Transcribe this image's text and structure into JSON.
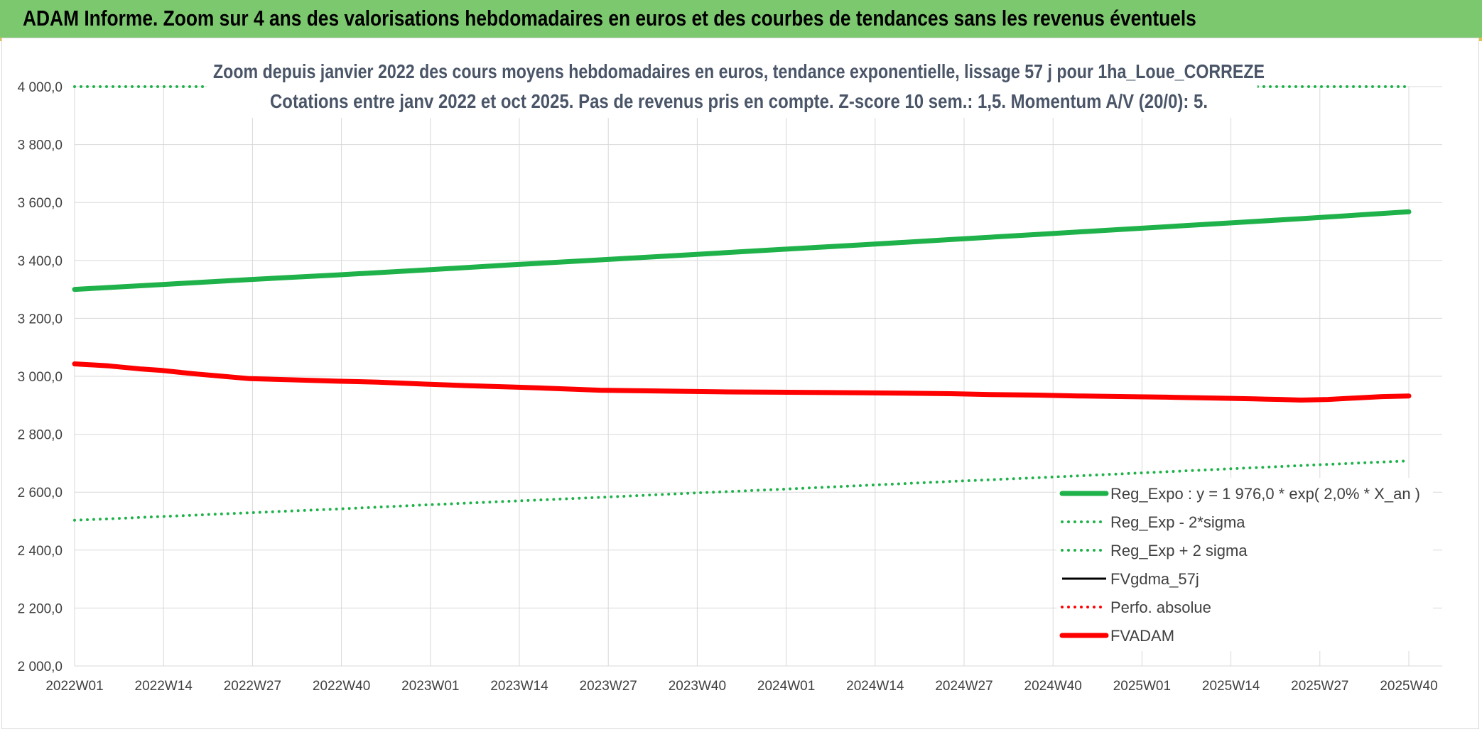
{
  "header": {
    "title": "ADAM Informe. Zoom sur 4 ans des valorisations hebdomadaires en euros et des courbes de tendances sans les revenus éventuels"
  },
  "chart_data": {
    "type": "line",
    "title": "Zoom depuis janvier 2022 des cours moyens hebdomadaires en euros, tendance exponentielle, lissage 57 j pour 1ha_Loue_CORREZE",
    "subtitle": "Cotations entre janv 2022 et oct 2025. Pas de revenus pris en compte. Z-score 10 sem.: 1,5. Momentum A/V (20/0): 5.",
    "xlabel": "",
    "ylabel": "",
    "x_ticks": [
      "2022W01",
      "2022W14",
      "2022W27",
      "2022W40",
      "2023W01",
      "2023W14",
      "2023W27",
      "2023W40",
      "2024W01",
      "2024W14",
      "2024W27",
      "2024W40",
      "2025W01",
      "2025W14",
      "2025W27",
      "2025W40"
    ],
    "y_ticks": [
      "2 000,0",
      "2 200,0",
      "2 400,0",
      "2 600,0",
      "2 800,0",
      "3 000,0",
      "3 200,0",
      "3 400,0",
      "3 600,0",
      "3 800,0",
      "4 000,0"
    ],
    "ylim": [
      2000,
      4000
    ],
    "x_range_weeks": [
      0,
      198
    ],
    "grid": true,
    "legend_position": "bottom-right",
    "series": [
      {
        "name": "Reg_Expo : y = 1 976,0 * exp( 2,0% *  X_an )",
        "style": "solid-thick",
        "color": "#1fb24a",
        "points": [
          [
            0,
            3300
          ],
          [
            13,
            3317
          ],
          [
            26,
            3334
          ],
          [
            39,
            3350
          ],
          [
            52,
            3367
          ],
          [
            65,
            3385
          ],
          [
            78,
            3402
          ],
          [
            91,
            3419
          ],
          [
            104,
            3437
          ],
          [
            117,
            3454
          ],
          [
            130,
            3472
          ],
          [
            143,
            3490
          ],
          [
            156,
            3508
          ],
          [
            169,
            3526
          ],
          [
            182,
            3544
          ],
          [
            198,
            3568
          ]
        ]
      },
      {
        "name": "Reg_Exp - 2*sigma",
        "style": "dotted",
        "color": "#1fb24a",
        "points": [
          [
            0,
            2503
          ],
          [
            13,
            2516
          ],
          [
            26,
            2529
          ],
          [
            39,
            2542
          ],
          [
            52,
            2556
          ],
          [
            65,
            2569
          ],
          [
            78,
            2582
          ],
          [
            91,
            2596
          ],
          [
            104,
            2609
          ],
          [
            117,
            2623
          ],
          [
            130,
            2637
          ],
          [
            143,
            2650
          ],
          [
            156,
            2664
          ],
          [
            169,
            2678
          ],
          [
            182,
            2692
          ],
          [
            198,
            2708
          ]
        ]
      },
      {
        "name": "Reg_Exp + 2 sigma",
        "style": "dotted",
        "color": "#1fb24a",
        "points": [
          [
            0,
            4000
          ],
          [
            198,
            4000
          ]
        ]
      },
      {
        "name": "FVgdma_57j",
        "style": "solid",
        "color": "#000000",
        "points": []
      },
      {
        "name": "Perfo. absolue",
        "style": "dotted",
        "color": "#ff0000",
        "points": []
      },
      {
        "name": "FVADAM",
        "style": "solid-thick",
        "color": "#ff0000",
        "points": [
          [
            0,
            3043
          ],
          [
            5,
            3036
          ],
          [
            10,
            3025
          ],
          [
            13,
            3020
          ],
          [
            18,
            3008
          ],
          [
            22,
            3000
          ],
          [
            26,
            2992
          ],
          [
            32,
            2988
          ],
          [
            39,
            2983
          ],
          [
            45,
            2980
          ],
          [
            52,
            2973
          ],
          [
            58,
            2968
          ],
          [
            65,
            2963
          ],
          [
            71,
            2958
          ],
          [
            78,
            2952
          ],
          [
            84,
            2950
          ],
          [
            91,
            2948
          ],
          [
            97,
            2946
          ],
          [
            104,
            2945
          ],
          [
            110,
            2944
          ],
          [
            117,
            2943
          ],
          [
            123,
            2942
          ],
          [
            130,
            2940
          ],
          [
            136,
            2937
          ],
          [
            143,
            2935
          ],
          [
            149,
            2932
          ],
          [
            156,
            2930
          ],
          [
            162,
            2928
          ],
          [
            169,
            2925
          ],
          [
            175,
            2922
          ],
          [
            179,
            2920
          ],
          [
            182,
            2918
          ],
          [
            186,
            2920
          ],
          [
            190,
            2925
          ],
          [
            194,
            2930
          ],
          [
            198,
            2932
          ]
        ]
      }
    ]
  }
}
